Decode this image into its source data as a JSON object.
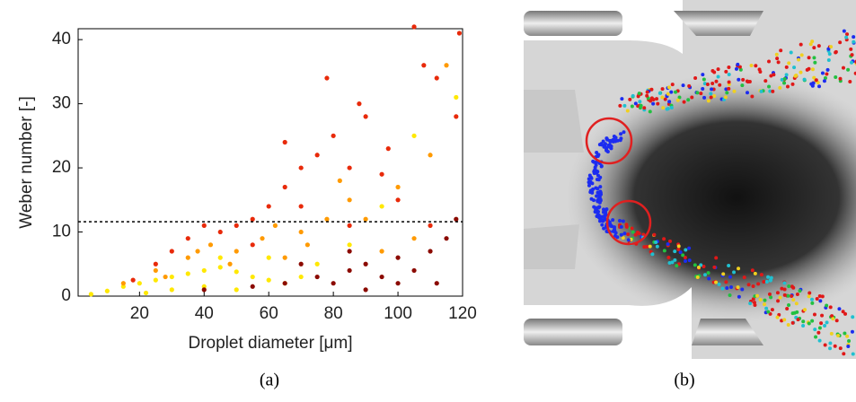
{
  "chart_data": {
    "type": "scatter",
    "xlabel": "Droplet diameter [μm]",
    "ylabel": "Weber number [-]",
    "xlim": [
      1,
      120
    ],
    "ylim": [
      0,
      41.7
    ],
    "xticks": [
      20,
      40,
      60,
      80,
      100,
      120
    ],
    "yticks": [
      0,
      10,
      20,
      30,
      40
    ],
    "reference_line": 11.6,
    "series": [
      {
        "color": "#ffe800",
        "x": [
          5,
          10,
          15,
          20,
          25,
          30,
          35,
          40,
          45,
          50,
          55,
          60,
          30,
          40,
          50,
          65,
          70,
          75,
          85,
          95,
          105,
          118,
          22,
          45,
          60
        ],
        "values": [
          0.3,
          0.8,
          1.5,
          2,
          2.5,
          3,
          3.5,
          4,
          4.5,
          3.8,
          3,
          2.5,
          1,
          1.5,
          1,
          2,
          3,
          5,
          8,
          14,
          25,
          31,
          0.5,
          6,
          6
        ]
      },
      {
        "color": "#ff9a00",
        "x": [
          15,
          25,
          35,
          42,
          50,
          58,
          65,
          70,
          78,
          85,
          90,
          100,
          110,
          115,
          28,
          48,
          62,
          72,
          95,
          105,
          82,
          38
        ],
        "values": [
          2,
          4,
          6,
          8,
          7,
          9,
          6,
          10,
          12,
          15,
          12,
          17,
          22,
          36,
          3,
          5,
          11,
          8,
          7,
          9,
          18,
          7
        ]
      },
      {
        "color": "#e82a0a",
        "x": [
          18,
          25,
          30,
          35,
          40,
          45,
          50,
          55,
          60,
          65,
          70,
          75,
          80,
          85,
          90,
          95,
          100,
          105,
          108,
          112,
          119,
          78,
          65,
          88,
          97,
          55,
          70,
          118,
          110,
          85
        ],
        "values": [
          2.5,
          5,
          7,
          9,
          11,
          10,
          11,
          12,
          14,
          17,
          20,
          22,
          25,
          20,
          28,
          19,
          15,
          42,
          36,
          34,
          41,
          34,
          24,
          30,
          23,
          8,
          14,
          28,
          11,
          11
        ]
      },
      {
        "color": "#8b0a00",
        "x": [
          40,
          55,
          65,
          75,
          80,
          85,
          90,
          95,
          100,
          105,
          110,
          115,
          70,
          90,
          100,
          112,
          118,
          85
        ],
        "values": [
          1,
          1.5,
          2,
          3,
          2,
          4,
          5,
          3,
          6,
          4,
          7,
          9,
          5,
          1,
          2,
          2,
          12,
          7
        ]
      }
    ]
  },
  "captions": {
    "a": "(a)",
    "b": "(b)"
  }
}
